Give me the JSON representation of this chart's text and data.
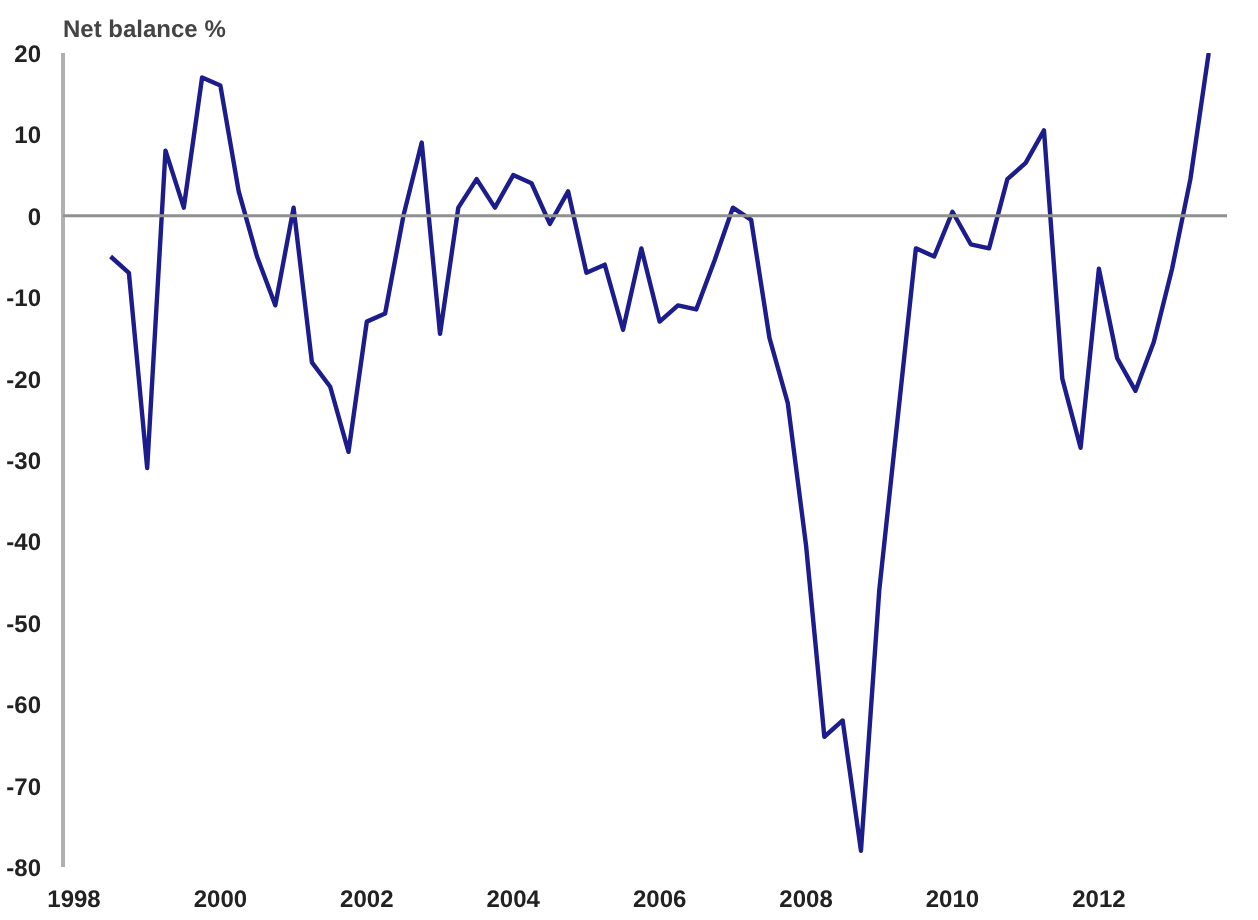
{
  "chart_data": {
    "type": "line",
    "ylabel": "Net balance %",
    "x": [
      1998.5,
      1998.75,
      1999,
      1999.25,
      1999.5,
      1999.75,
      2000,
      2000.25,
      2000.5,
      2000.75,
      2001,
      2001.25,
      2001.5,
      2001.75,
      2002,
      2002.25,
      2002.5,
      2002.75,
      2003,
      2003.25,
      2003.5,
      2003.75,
      2004,
      2004.25,
      2004.5,
      2004.75,
      2005,
      2005.25,
      2005.5,
      2005.75,
      2006,
      2006.25,
      2006.5,
      2006.75,
      2007,
      2007.25,
      2007.5,
      2007.75,
      2008,
      2008.25,
      2008.5,
      2008.75,
      2009,
      2009.25,
      2009.5,
      2009.75,
      2010,
      2010.25,
      2010.5,
      2010.75,
      2011,
      2011.25,
      2011.5,
      2011.75,
      2012,
      2012.25,
      2012.5,
      2012.75,
      2013,
      2013.25,
      2013.5
    ],
    "series": [
      {
        "color": "#1c1c8c",
        "values": [
          -5,
          -7,
          -31,
          8,
          1,
          17,
          16,
          3,
          -5,
          -11,
          1,
          -18,
          -21,
          -29,
          -13,
          -12,
          0,
          9,
          -14.5,
          1,
          4.5,
          1,
          5,
          4,
          -1,
          3,
          -7,
          -6,
          -14,
          -4,
          -13,
          -11,
          -11.5,
          -5.5,
          1,
          -0.5,
          -15,
          -23,
          -40.5,
          -64,
          -62,
          -78,
          -46,
          -25,
          -4,
          -5,
          0.5,
          -3.5,
          -4,
          4.5,
          6.5,
          10.5,
          -20,
          -28.5,
          -6.5,
          -17.5,
          -21.5,
          -15.5,
          -6.5,
          4.5,
          20
        ]
      }
    ],
    "xlim": [
      1997.85,
      2013.75
    ],
    "ylim": [
      -80,
      20
    ],
    "xticks": [
      1998,
      2000,
      2002,
      2004,
      2006,
      2008,
      2010,
      2012
    ],
    "yticks": [
      -80,
      -70,
      -60,
      -50,
      -40,
      -30,
      -20,
      -10,
      0,
      10,
      20
    ],
    "ref_lines": [
      {
        "axis": "y",
        "value": 0,
        "color": "#909090"
      }
    ],
    "grid": false,
    "marker": "none",
    "line_style": "solid"
  }
}
